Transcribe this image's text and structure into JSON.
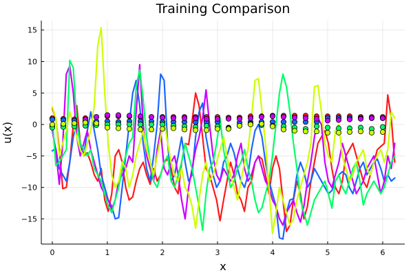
{
  "chart_data": {
    "type": "line",
    "title": "Training Comparison",
    "xlabel": "x",
    "ylabel": "u(x)",
    "xlim": [
      -0.2,
      6.4
    ],
    "ylim": [
      -19,
      16.5
    ],
    "xticks": [
      0,
      1,
      2,
      3,
      4,
      5,
      6
    ],
    "yticks": [
      -15,
      -10,
      -5,
      0,
      5,
      10,
      15
    ],
    "grid": true,
    "legend": "none",
    "series": [
      {
        "color": "#ff1a1a",
        "x": [
          0,
          0.063,
          0.127,
          0.19,
          0.254,
          0.317,
          0.381,
          0.444,
          0.508,
          0.571,
          0.635,
          0.698,
          0.762,
          0.825,
          0.888,
          0.952,
          1.015,
          1.079,
          1.142,
          1.206,
          1.269,
          1.333,
          1.396,
          1.46,
          1.523,
          1.587,
          1.65,
          1.713,
          1.777,
          1.84,
          1.904,
          1.967,
          2.031,
          2.094,
          2.158,
          2.221,
          2.285,
          2.348,
          2.412,
          2.475,
          2.538,
          2.602,
          2.665,
          2.729,
          2.792,
          2.856,
          2.919,
          2.983,
          3.046,
          3.11,
          3.173,
          3.237,
          3.3,
          3.363,
          3.427,
          3.49,
          3.554,
          3.617,
          3.681,
          3.744,
          3.808,
          3.871,
          3.935,
          3.998,
          4.062,
          4.125,
          4.188,
          4.252,
          4.315,
          4.379,
          4.442,
          4.506,
          4.569,
          4.633,
          4.696,
          4.76,
          4.823,
          4.887,
          4.95,
          5.013,
          5.077,
          5.14,
          5.204,
          5.267,
          5.331,
          5.394,
          5.458,
          5.521,
          5.585,
          5.648,
          5.712,
          5.775,
          5.839,
          5.902,
          5.965,
          6.029,
          6.092,
          6.156,
          6.219
        ],
        "y": [
          2.5,
          1,
          -4,
          -10.2,
          -10,
          -6,
          0,
          3,
          -3,
          -5,
          -4.5,
          -6,
          -8,
          -9,
          -7,
          -12,
          -13.8,
          -11,
          -5,
          -4,
          -6,
          -10,
          -12,
          -11.5,
          -9,
          -7,
          -6,
          -8,
          -9.5,
          -7,
          -9,
          -8,
          -6,
          -5.5,
          -7,
          -10,
          -11,
          -6,
          -3,
          -3.2,
          0.5,
          5,
          3,
          -2,
          -7,
          -8,
          -10,
          -12,
          -15.3,
          -12,
          -9,
          -6,
          -8,
          -11,
          -12,
          -13.8,
          -10,
          -9,
          -6,
          -5,
          -5.5,
          -8,
          -11,
          -7,
          -5,
          -7,
          -12,
          -17,
          -16,
          -12,
          -9,
          -11,
          -15,
          -13,
          -9,
          -6,
          -3,
          -2,
          -1,
          -3,
          -7,
          -10,
          -11,
          -9,
          -5,
          -4,
          -3,
          -5,
          -7,
          -9,
          -10,
          -8,
          -6,
          -4,
          -3.5,
          -3,
          4.7,
          1,
          -6
        ]
      },
      {
        "color": "#1a66ff",
        "x": [
          0,
          0.063,
          0.127,
          0.19,
          0.254,
          0.317,
          0.381,
          0.444,
          0.508,
          0.571,
          0.635,
          0.698,
          0.762,
          0.825,
          0.888,
          0.952,
          1.015,
          1.079,
          1.142,
          1.206,
          1.269,
          1.333,
          1.396,
          1.46,
          1.523,
          1.587,
          1.65,
          1.713,
          1.777,
          1.84,
          1.904,
          1.967,
          2.031,
          2.094,
          2.158,
          2.221,
          2.285,
          2.348,
          2.412,
          2.475,
          2.538,
          2.602,
          2.665,
          2.729,
          2.792,
          2.856,
          2.919,
          2.983,
          3.046,
          3.11,
          3.173,
          3.237,
          3.3,
          3.363,
          3.427,
          3.49,
          3.554,
          3.617,
          3.681,
          3.744,
          3.808,
          3.871,
          3.935,
          3.998,
          4.062,
          4.125,
          4.188,
          4.252,
          4.315,
          4.379,
          4.442,
          4.506,
          4.569,
          4.633,
          4.696,
          4.76,
          4.823,
          4.887,
          4.95,
          5.013,
          5.077,
          5.14,
          5.204,
          5.267,
          5.331,
          5.394,
          5.458,
          5.521,
          5.585,
          5.648,
          5.712,
          5.775,
          5.839,
          5.902,
          5.965,
          6.029,
          6.092,
          6.156,
          6.219
        ],
        "y": [
          -4.2,
          -3.8,
          -7,
          -8,
          -9,
          -6,
          -2,
          0.5,
          -3,
          -5,
          -1,
          2,
          -1,
          -4,
          -8,
          -10,
          -12,
          -13,
          -15,
          -14.8,
          -10,
          -5,
          0,
          5,
          7,
          3,
          -3,
          -7,
          -9,
          -5,
          0,
          8,
          7,
          -3,
          -9,
          -8,
          -5,
          -2,
          -6,
          -9,
          -8,
          -2,
          2,
          3.4,
          -2,
          -5,
          -8,
          -10,
          -9,
          -6,
          -5,
          -3,
          -4.5,
          -7,
          -9,
          -10,
          -8,
          -4,
          -1,
          0,
          -2,
          -6,
          -9,
          -11,
          -13,
          -18,
          -18.2,
          -14,
          -12,
          -11.8,
          -8,
          -6,
          -7.5,
          -10,
          -9,
          -7,
          -8,
          -9,
          -10,
          -11,
          -10.5,
          -9,
          -8,
          -7.5,
          -8,
          -10,
          -11,
          -9,
          -7,
          -6,
          -8,
          -7,
          -6,
          -5.5,
          -7,
          -9,
          -8,
          -9,
          -8.5
        ]
      },
      {
        "color": "#cc00ff",
        "x": [
          0,
          0.063,
          0.127,
          0.19,
          0.254,
          0.317,
          0.381,
          0.444,
          0.508,
          0.571,
          0.635,
          0.698,
          0.762,
          0.825,
          0.888,
          0.952,
          1.015,
          1.079,
          1.142,
          1.206,
          1.269,
          1.333,
          1.396,
          1.46,
          1.523,
          1.587,
          1.65,
          1.713,
          1.777,
          1.84,
          1.904,
          1.967,
          2.031,
          2.094,
          2.158,
          2.221,
          2.285,
          2.348,
          2.412,
          2.475,
          2.538,
          2.602,
          2.665,
          2.729,
          2.792,
          2.856,
          2.919,
          2.983,
          3.046,
          3.11,
          3.173,
          3.237,
          3.3,
          3.363,
          3.427,
          3.49,
          3.554,
          3.617,
          3.681,
          3.744,
          3.808,
          3.871,
          3.935,
          3.998,
          4.062,
          4.125,
          4.188,
          4.252,
          4.315,
          4.379,
          4.442,
          4.506,
          4.569,
          4.633,
          4.696,
          4.76,
          4.823,
          4.887,
          4.95,
          5.013,
          5.077,
          5.14,
          5.204,
          5.267,
          5.331,
          5.394,
          5.458,
          5.521,
          5.585,
          5.648,
          5.712,
          5.775,
          5.839,
          5.902,
          5.965,
          6.029,
          6.092,
          6.156,
          6.219
        ],
        "y": [
          -1,
          -4,
          -9.5,
          -3,
          8,
          9.3,
          5,
          -2,
          -5,
          -3,
          -1,
          -4,
          -6,
          -8,
          -10,
          -11,
          -12,
          -13.5,
          -12,
          -9,
          -8,
          -7,
          -5,
          -6,
          2,
          9.5,
          0,
          -5,
          -7,
          -9,
          -4,
          -1,
          -7,
          -8,
          -6,
          -5,
          -8,
          -12,
          -15,
          -10,
          -7,
          -4,
          -2,
          1,
          5.5,
          0,
          -5,
          -8,
          -9,
          -7,
          -8,
          -9,
          -8,
          -5,
          -3,
          -7,
          -9,
          -8,
          -6,
          -5,
          -7,
          -9,
          -10,
          -12,
          -13,
          -15,
          -16,
          -14,
          -13,
          -12,
          -14,
          -15.5,
          -13,
          -9,
          -6,
          -2,
          1,
          0,
          -6,
          -9,
          -10,
          -8,
          -6,
          -3,
          -5,
          -7,
          -9,
          -11,
          -10,
          -9,
          -7,
          -6,
          -5,
          -8,
          -11,
          -9,
          -5,
          -7,
          -3
        ]
      },
      {
        "color": "#00ff66",
        "x": [
          0,
          0.063,
          0.127,
          0.19,
          0.254,
          0.317,
          0.381,
          0.444,
          0.508,
          0.571,
          0.635,
          0.698,
          0.762,
          0.825,
          0.888,
          0.952,
          1.015,
          1.079,
          1.142,
          1.206,
          1.269,
          1.333,
          1.396,
          1.46,
          1.523,
          1.587,
          1.65,
          1.713,
          1.777,
          1.84,
          1.904,
          1.967,
          2.031,
          2.094,
          2.158,
          2.221,
          2.285,
          2.348,
          2.412,
          2.475,
          2.538,
          2.602,
          2.665,
          2.729,
          2.792,
          2.856,
          2.919,
          2.983,
          3.046,
          3.11,
          3.173,
          3.237,
          3.3,
          3.363,
          3.427,
          3.49,
          3.554,
          3.617,
          3.681,
          3.744,
          3.808,
          3.871,
          3.935,
          3.998,
          4.062,
          4.125,
          4.188,
          4.252,
          4.315,
          4.379,
          4.442,
          4.506,
          4.569,
          4.633,
          4.696,
          4.76,
          4.823,
          4.887,
          4.95,
          5.013,
          5.077,
          5.14,
          5.204,
          5.267,
          5.331,
          5.394,
          5.458,
          5.521,
          5.585,
          5.648,
          5.712,
          5.775,
          5.839,
          5.902,
          5.965,
          6.029,
          6.092,
          6.156,
          6.219
        ],
        "y": [
          1,
          -6.5,
          -6,
          -5,
          -4,
          10.2,
          9,
          0,
          -3,
          -4,
          -5,
          -4,
          -7,
          -8,
          -9,
          -11,
          -13,
          -14,
          -12,
          -10,
          -7,
          -5,
          -3,
          -2,
          6,
          8.7,
          4,
          -2,
          -6,
          -9,
          -10,
          -8,
          -6,
          -5,
          -9,
          -10,
          -8,
          -6,
          -3,
          -5,
          -7,
          -10,
          -13,
          -16.8,
          -11,
          -7,
          -6,
          -3,
          1,
          -4,
          -7,
          -10,
          -9,
          -7,
          -6,
          -4,
          -7,
          -9,
          -12,
          -14,
          -13.2,
          -11,
          -9,
          -5,
          0,
          5,
          8,
          6,
          2,
          -3,
          -7,
          -12,
          -14,
          -16,
          -14,
          -12,
          -11,
          -10,
          -9,
          -11,
          -13.3,
          -9,
          -8,
          -10,
          -11,
          -9,
          -7,
          -6,
          -9,
          -12.8,
          -11,
          -10,
          -9,
          -10,
          -11,
          -10,
          -8,
          -6,
          -5
        ]
      },
      {
        "color": "#ccff00",
        "x": [
          0,
          0.063,
          0.127,
          0.19,
          0.254,
          0.317,
          0.381,
          0.444,
          0.508,
          0.571,
          0.635,
          0.698,
          0.762,
          0.825,
          0.888,
          0.952,
          1.015,
          1.079,
          1.142,
          1.206,
          1.269,
          1.333,
          1.396,
          1.46,
          1.523,
          1.587,
          1.65,
          1.713,
          1.777,
          1.84,
          1.904,
          1.967,
          2.031,
          2.094,
          2.158,
          2.221,
          2.285,
          2.348,
          2.412,
          2.475,
          2.538,
          2.602,
          2.665,
          2.729,
          2.792,
          2.856,
          2.919,
          2.983,
          3.046,
          3.11,
          3.173,
          3.237,
          3.3,
          3.363,
          3.427,
          3.49,
          3.554,
          3.617,
          3.681,
          3.744,
          3.808,
          3.871,
          3.935,
          3.998,
          4.062,
          4.125,
          4.188,
          4.252,
          4.315,
          4.379,
          4.442,
          4.506,
          4.569,
          4.633,
          4.696,
          4.76,
          4.823,
          4.887,
          4.95,
          5.013,
          5.077,
          5.14,
          5.204,
          5.267,
          5.331,
          5.394,
          5.458,
          5.521,
          5.585,
          5.648,
          5.712,
          5.775,
          5.839,
          5.902,
          5.965,
          6.029,
          6.092,
          6.156,
          6.219
        ],
        "y": [
          2.8,
          1,
          -5,
          -3,
          -1,
          2,
          0,
          -2,
          -4,
          -5,
          -3,
          -1,
          3,
          12.5,
          15.4,
          5,
          -3,
          -8,
          -10,
          -9,
          -6,
          -7,
          -10,
          -8,
          -5,
          -3,
          -1,
          -4,
          -6,
          -8,
          -5,
          -2,
          1,
          -3,
          -6,
          -8,
          -9,
          -7,
          -10,
          -11,
          -13,
          -16.5,
          -12,
          -8,
          -6,
          -9,
          -8,
          -6,
          -4,
          -2,
          -5,
          -8,
          -10,
          -12,
          -9,
          -6,
          -4,
          1,
          7,
          7.3,
          2,
          -3,
          -10,
          -17.3,
          -14,
          -10,
          -12,
          -14,
          -16,
          -15,
          -12,
          -10,
          -8,
          -6,
          -3,
          6,
          6.2,
          2,
          -3,
          -5,
          -6,
          -1,
          0,
          -5,
          -7,
          -9,
          -8,
          -6,
          -5,
          -4,
          -7,
          -8,
          -6,
          -5,
          -4,
          -6,
          -4,
          2,
          1
        ]
      }
    ],
    "markers": {
      "x": [
        0,
        0.2,
        0.4,
        0.6,
        0.8,
        1.0,
        1.2,
        1.4,
        1.6,
        1.8,
        2.0,
        2.2,
        2.4,
        2.6,
        2.8,
        3.0,
        3.2,
        3.4,
        3.6,
        3.8,
        4.0,
        4.2,
        4.4,
        4.6,
        4.8,
        5.0,
        5.2,
        5.4,
        5.6,
        5.8,
        6.0
      ],
      "series": [
        {
          "color": "#ff1a1a",
          "y": [
            1,
            0.9,
            0.8,
            1.0,
            1.2,
            1.3,
            1.3,
            1.3,
            1.2,
            1.2,
            1.2,
            1.2,
            1.2,
            1.2,
            1.2,
            1.2,
            1.1,
            1.1,
            1.3,
            1.3,
            1.4,
            1.4,
            1.4,
            1.4,
            1.3,
            1.3,
            1.3,
            1.3,
            1.2,
            1.2,
            1.2
          ]
        },
        {
          "color": "#1a66ff",
          "y": [
            0.8,
            0.7,
            0.6,
            0.5,
            0.5,
            0.5,
            0.4,
            0.5,
            0.5,
            0.5,
            0.4,
            0.4,
            0.4,
            0.4,
            0.4,
            0.4,
            -0.5,
            0.3,
            0.4,
            0.4,
            0.4,
            0.4,
            0.4,
            0.4,
            0.4,
            1.0,
            1.0,
            1.0,
            1.0,
            1.0,
            1.0
          ]
        },
        {
          "color": "#cc00ff",
          "y": [
            -0.3,
            -0.2,
            0.1,
            0.8,
            1.2,
            1.5,
            1.5,
            1.4,
            1.3,
            1.2,
            1.1,
            1.0,
            1.0,
            1.0,
            0.9,
            0.9,
            0.9,
            0.9,
            1.0,
            1.2,
            1.3,
            1.2,
            1.1,
            1.0,
            0.9,
            0.6,
            0.7,
            0.8,
            0.9,
            1.0,
            1.0
          ]
        },
        {
          "color": "#00ff66",
          "y": [
            -0.5,
            -0.4,
            -0.3,
            -0.2,
            -0.1,
            0.0,
            0.0,
            0.0,
            0.0,
            0.0,
            0.0,
            -0.2,
            -0.3,
            -0.4,
            -0.2,
            -0.3,
            -0.6,
            -0.2,
            0.1,
            -0.1,
            -0.2,
            -0.3,
            -0.5,
            -0.7,
            -0.3,
            -0.5,
            -0.6,
            -0.6,
            -0.5,
            -0.7,
            -0.4
          ]
        },
        {
          "color": "#ccff00",
          "y": [
            0.0,
            0.1,
            0.2,
            0.3,
            0.2,
            -0.5,
            -0.6,
            -0.7,
            -0.8,
            -0.8,
            -0.7,
            -0.6,
            -0.8,
            -0.9,
            -0.9,
            -0.7,
            -0.7,
            -0.2,
            0.0,
            0.1,
            -0.3,
            -0.8,
            -1.0,
            -1.1,
            -1.1,
            -1.3,
            -1.3,
            -1.2,
            -1.1,
            -1.3,
            -1.2
          ]
        }
      ]
    }
  }
}
